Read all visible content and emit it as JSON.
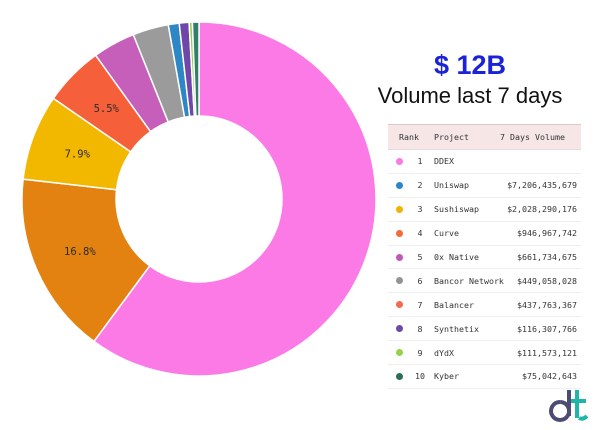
{
  "headline": {
    "amount": "$ 12B",
    "subtitle": "Volume last 7 days"
  },
  "table": {
    "headers": {
      "rank": "Rank",
      "project": "Project",
      "volume": "7 Days Volume"
    },
    "rows": [
      {
        "rank": "1",
        "project": "DDEX",
        "volume": "",
        "color": "#f87ae4"
      },
      {
        "rank": "2",
        "project": "Uniswap",
        "volume": "$7,206,435,679",
        "color": "#2a86c8"
      },
      {
        "rank": "3",
        "project": "Sushiswap",
        "volume": "$2,028,290,176",
        "color": "#f0b300"
      },
      {
        "rank": "4",
        "project": "Curve",
        "volume": "$946,967,742",
        "color": "#f26b3c"
      },
      {
        "rank": "5",
        "project": "0x Native",
        "volume": "$661,734,675",
        "color": "#c159b4"
      },
      {
        "rank": "6",
        "project": "Bancor Network",
        "volume": "$449,058,028",
        "color": "#949494"
      },
      {
        "rank": "7",
        "project": "Balancer",
        "volume": "$437,763,367",
        "color": "#f36a52"
      },
      {
        "rank": "8",
        "project": "Synthetix",
        "volume": "$116,307,766",
        "color": "#6a4aa2"
      },
      {
        "rank": "9",
        "project": "dYdX",
        "volume": "$111,573,121",
        "color": "#96d14b"
      },
      {
        "rank": "10",
        "project": "Kyber",
        "volume": "$75,042,643",
        "color": "#2a6e5b"
      }
    ]
  },
  "chart_data": {
    "type": "pie",
    "donut": true,
    "categories": [
      "DDEX",
      "Uniswap",
      "Sushiswap",
      "Curve",
      "0x Native",
      "Bancor Network",
      "Balancer",
      "Synthetix",
      "dYdX",
      "Kyber"
    ],
    "values": [
      60.6,
      16.8,
      7.9,
      5.5,
      3.9,
      3.3,
      1.0,
      0.9,
      0.3,
      0.6
    ],
    "colors": [
      "#fb7ae5",
      "#e38211",
      "#f2b800",
      "#f5603a",
      "#c55fba",
      "#9b9b9b",
      "#2d87c5",
      "#7047a8",
      "#9ad151",
      "#2f7f6a"
    ],
    "slice_labels": [
      "",
      "16.8%",
      "7.9%",
      "5.5%",
      "",
      "",
      "",
      "",
      "",
      ""
    ],
    "start_angle_deg": 0,
    "direction": "clockwise"
  },
  "logo": {
    "text": "dt",
    "colors": [
      "#4d4a73",
      "#1fb6a8"
    ]
  }
}
